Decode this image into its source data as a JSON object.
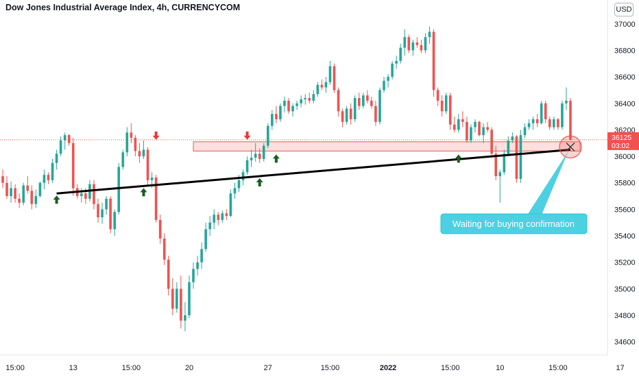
{
  "chart_data": {
    "type": "candlestick",
    "title": "Dow Jones Industrial Average Index, 4h, CURRENCYCOM",
    "currency_label": "USD",
    "y_ticks": [
      37000,
      36800,
      36600,
      36400,
      36200,
      36000,
      35800,
      35600,
      35400,
      35200,
      35000,
      34800,
      34600
    ],
    "ylim": [
      34500,
      37180
    ],
    "x_ticks": [
      "15:00",
      "13",
      "15:00",
      "20",
      "27",
      "15:00",
      "2022",
      "15:00",
      "10",
      "15:00",
      "17"
    ],
    "last_price": "36125",
    "countdown": "03:02",
    "colors": {
      "up": "#26a69a",
      "down": "#ef5350",
      "trendline": "#000000",
      "zone": "#ef5350",
      "note": "#4dd0e1"
    },
    "support_zone": {
      "from": 36040,
      "to": 36110
    },
    "trendline": {
      "start": 35720,
      "end": 36050
    },
    "annotation": "Waiting for buying confirmation",
    "candles": [
      [
        35850,
        35900,
        35760,
        35800
      ],
      [
        35800,
        35850,
        35680,
        35700
      ],
      [
        35700,
        35810,
        35650,
        35760
      ],
      [
        35760,
        35790,
        35650,
        35680
      ],
      [
        35680,
        35720,
        35610,
        35650
      ],
      [
        35650,
        35800,
        35630,
        35780
      ],
      [
        35780,
        35850,
        35720,
        35740
      ],
      [
        35740,
        35780,
        35600,
        35640
      ],
      [
        35640,
        35750,
        35610,
        35700
      ],
      [
        35700,
        35810,
        35690,
        35800
      ],
      [
        35800,
        35900,
        35750,
        35860
      ],
      [
        35860,
        35880,
        35790,
        35820
      ],
      [
        35820,
        35980,
        35800,
        35950
      ],
      [
        35950,
        36050,
        35900,
        36020
      ],
      [
        36020,
        36150,
        36000,
        36120
      ],
      [
        36120,
        36180,
        36050,
        36160
      ],
      [
        36160,
        36170,
        36080,
        36100
      ],
      [
        36100,
        36140,
        35700,
        35760
      ],
      [
        35760,
        35790,
        35680,
        35700
      ],
      [
        35700,
        35760,
        35650,
        35720
      ],
      [
        35720,
        35760,
        35640,
        35680
      ],
      [
        35680,
        35820,
        35660,
        35790
      ],
      [
        35790,
        35820,
        35600,
        35640
      ],
      [
        35640,
        35680,
        35500,
        35540
      ],
      [
        35540,
        35650,
        35490,
        35600
      ],
      [
        35600,
        35700,
        35560,
        35680
      ],
      [
        35680,
        35700,
        35420,
        35450
      ],
      [
        35450,
        35600,
        35400,
        35580
      ],
      [
        35580,
        35950,
        35560,
        35920
      ],
      [
        35920,
        36050,
        35900,
        36030
      ],
      [
        36030,
        36220,
        36000,
        36180
      ],
      [
        36180,
        36250,
        36100,
        36140
      ],
      [
        36140,
        36160,
        36000,
        36040
      ],
      [
        36040,
        36100,
        35950,
        36000
      ],
      [
        36000,
        36120,
        35980,
        36050
      ],
      [
        36050,
        36070,
        35780,
        35820
      ],
      [
        35820,
        35880,
        35760,
        35840
      ],
      [
        35840,
        35860,
        35500,
        35520
      ],
      [
        35520,
        35560,
        35340,
        35380
      ],
      [
        35380,
        35420,
        35180,
        35220
      ],
      [
        35220,
        35250,
        34950,
        35000
      ],
      [
        35000,
        35080,
        34800,
        34850
      ],
      [
        34850,
        35050,
        34820,
        35000
      ],
      [
        35000,
        35100,
        34700,
        34760
      ],
      [
        34760,
        34900,
        34680,
        34800
      ],
      [
        34800,
        35100,
        34780,
        35050
      ],
      [
        35050,
        35200,
        35000,
        35150
      ],
      [
        35150,
        35250,
        35100,
        35200
      ],
      [
        35200,
        35350,
        35150,
        35300
      ],
      [
        35300,
        35500,
        35280,
        35450
      ],
      [
        35450,
        35550,
        35400,
        35500
      ],
      [
        35500,
        35600,
        35450,
        35560
      ],
      [
        35560,
        35580,
        35480,
        35520
      ],
      [
        35520,
        35590,
        35500,
        35570
      ],
      [
        35570,
        35600,
        35520,
        35550
      ],
      [
        35550,
        35750,
        35540,
        35720
      ],
      [
        35720,
        35800,
        35680,
        35760
      ],
      [
        35760,
        35860,
        35730,
        35820
      ],
      [
        35820,
        35900,
        35780,
        35880
      ],
      [
        35880,
        36000,
        35860,
        35970
      ],
      [
        35970,
        36050,
        35920,
        35990
      ],
      [
        35990,
        36100,
        35960,
        36020
      ],
      [
        36020,
        36060,
        35950,
        35980
      ],
      [
        35980,
        36100,
        35960,
        36080
      ],
      [
        36080,
        36250,
        36060,
        36230
      ],
      [
        36230,
        36350,
        36200,
        36320
      ],
      [
        36320,
        36380,
        36250,
        36280
      ],
      [
        36280,
        36400,
        36260,
        36380
      ],
      [
        36380,
        36450,
        36330,
        36420
      ],
      [
        36420,
        36440,
        36320,
        36340
      ],
      [
        36340,
        36400,
        36300,
        36380
      ],
      [
        36380,
        36420,
        36350,
        36400
      ],
      [
        36400,
        36460,
        36370,
        36430
      ],
      [
        36430,
        36470,
        36390,
        36440
      ],
      [
        36440,
        36480,
        36400,
        36420
      ],
      [
        36420,
        36500,
        36400,
        36470
      ],
      [
        36470,
        36560,
        36450,
        36540
      ],
      [
        36540,
        36580,
        36500,
        36520
      ],
      [
        36520,
        36600,
        36480,
        36560
      ],
      [
        36560,
        36720,
        36540,
        36680
      ],
      [
        36680,
        36700,
        36480,
        36500
      ],
      [
        36500,
        36520,
        36300,
        36340
      ],
      [
        36340,
        36360,
        36220,
        36260
      ],
      [
        36260,
        36380,
        36240,
        36360
      ],
      [
        36360,
        36400,
        36240,
        36280
      ],
      [
        36280,
        36460,
        36260,
        36440
      ],
      [
        36440,
        36480,
        36350,
        36380
      ],
      [
        36380,
        36480,
        36360,
        36460
      ],
      [
        36460,
        36500,
        36400,
        36420
      ],
      [
        36420,
        36450,
        36360,
        36380
      ],
      [
        36380,
        36420,
        36230,
        36260
      ],
      [
        36260,
        36520,
        36240,
        36500
      ],
      [
        36500,
        36600,
        36480,
        36570
      ],
      [
        36570,
        36620,
        36520,
        36600
      ],
      [
        36600,
        36720,
        36580,
        36700
      ],
      [
        36700,
        36760,
        36660,
        36720
      ],
      [
        36720,
        36850,
        36700,
        36820
      ],
      [
        36820,
        36960,
        36760,
        36900
      ],
      [
        36900,
        36920,
        36780,
        36800
      ],
      [
        36800,
        36880,
        36760,
        36860
      ],
      [
        36860,
        36900,
        36820,
        36840
      ],
      [
        36840,
        36880,
        36780,
        36800
      ],
      [
        36800,
        36930,
        36780,
        36900
      ],
      [
        36900,
        36980,
        36850,
        36940
      ],
      [
        36940,
        36960,
        36450,
        36500
      ],
      [
        36500,
        36520,
        36380,
        36420
      ],
      [
        36420,
        36460,
        36300,
        36340
      ],
      [
        36340,
        36480,
        36320,
        36460
      ],
      [
        36460,
        36480,
        36200,
        36240
      ],
      [
        36240,
        36300,
        36180,
        36200
      ],
      [
        36200,
        36320,
        36180,
        36280
      ],
      [
        36280,
        36340,
        36220,
        36260
      ],
      [
        36260,
        36300,
        36100,
        36120
      ],
      [
        36120,
        36240,
        36100,
        36220
      ],
      [
        36220,
        36280,
        36180,
        36260
      ],
      [
        36260,
        36270,
        36150,
        36160
      ],
      [
        36160,
        36250,
        36100,
        36220
      ],
      [
        36220,
        36260,
        36180,
        36200
      ],
      [
        36200,
        36220,
        36000,
        36020
      ],
      [
        36020,
        36080,
        35820,
        35850
      ],
      [
        35850,
        35900,
        35650,
        35880
      ],
      [
        35880,
        36050,
        35860,
        36020
      ],
      [
        36020,
        36150,
        36000,
        36120
      ],
      [
        36120,
        36180,
        36100,
        36150
      ],
      [
        36150,
        36160,
        35800,
        35830
      ],
      [
        35830,
        36200,
        35800,
        36160
      ],
      [
        36160,
        36250,
        36140,
        36220
      ],
      [
        36220,
        36280,
        36200,
        36250
      ],
      [
        36250,
        36300,
        36200,
        36280
      ],
      [
        36280,
        36320,
        36220,
        36250
      ],
      [
        36250,
        36420,
        36240,
        36400
      ],
      [
        36400,
        36420,
        36250,
        36280
      ],
      [
        36280,
        36300,
        36200,
        36220
      ],
      [
        36220,
        36300,
        36200,
        36280
      ],
      [
        36280,
        36290,
        36200,
        36220
      ],
      [
        36220,
        36420,
        36200,
        36400
      ],
      [
        36400,
        36520,
        36350,
        36420
      ],
      [
        36420,
        36440,
        36120,
        36125
      ]
    ]
  }
}
